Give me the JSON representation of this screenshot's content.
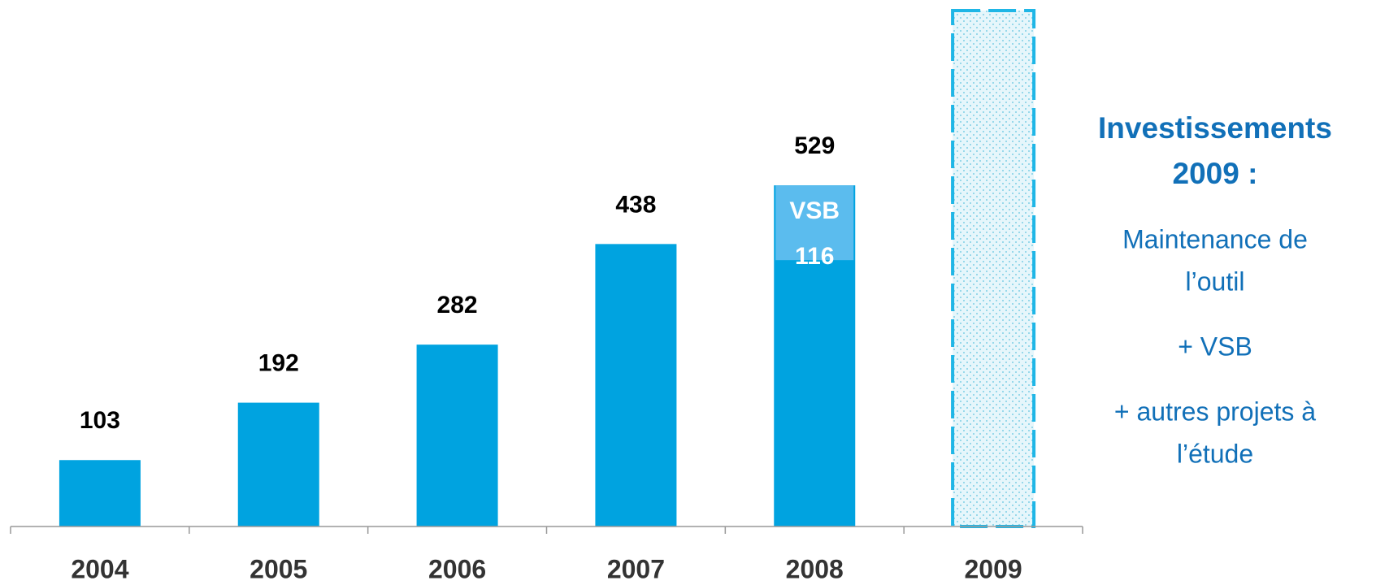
{
  "chart_data": {
    "type": "bar",
    "categories": [
      "2004",
      "2005",
      "2006",
      "2007",
      "2008",
      "2009"
    ],
    "series": [
      {
        "values": [
          103,
          192,
          282,
          438,
          529,
          null
        ],
        "color": "#00a3e0"
      },
      {
        "name": "VSB",
        "values": [
          null,
          null,
          null,
          null,
          116,
          null
        ],
        "color": "#5bbcee"
      }
    ],
    "ylim": [
      0,
      800
    ],
    "side_panel": {
      "title_lines": [
        "Investissements",
        "2009 :"
      ],
      "items": [
        [
          "Maintenance de",
          "l’outil"
        ],
        [
          "+ VSB"
        ],
        [
          "+ autres projets à",
          "l’étude"
        ]
      ]
    }
  }
}
